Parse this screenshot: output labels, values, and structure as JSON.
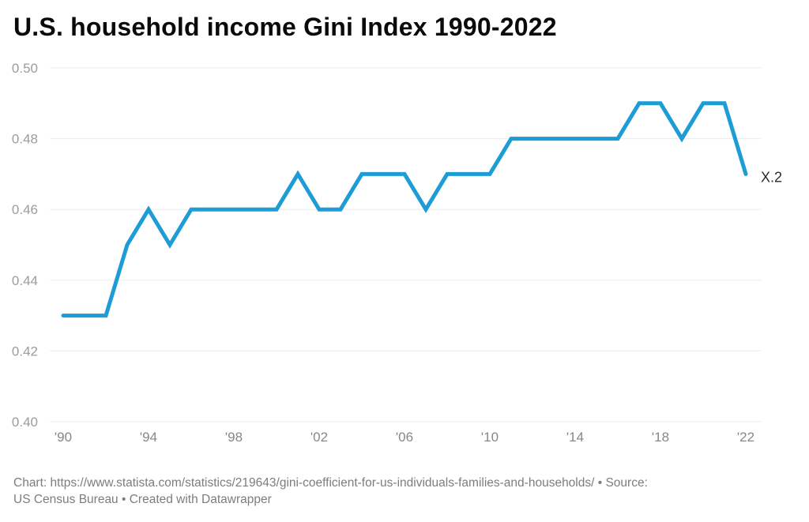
{
  "title": "U.S. household income Gini Index 1990-2022",
  "footer": {
    "line1": "Chart: https://www.statista.com/statistics/219643/gini-coefficient-for-us-individuals-families-and-households/ • Source:",
    "line2": "US Census Bureau • Created with Datawrapper"
  },
  "colors": {
    "line": "#1d9cd6",
    "grid": "#ececec",
    "y_label": "#9c9c9c",
    "x_label": "#878787",
    "end_label": "#2b2b2b",
    "title": "#0a0a0a",
    "footer": "#7d7d7d"
  },
  "chart_data": {
    "type": "line",
    "title": "U.S. household income Gini Index 1990-2022",
    "xlabel": "",
    "ylabel": "",
    "ylim": [
      0.4,
      0.5
    ],
    "grid": "horizontal",
    "legend": false,
    "end_label": "X.2",
    "yticks": [
      0.5,
      0.48,
      0.46,
      0.44,
      0.42,
      0.4
    ],
    "ytick_labels": [
      "0.50",
      "0.48",
      "0.46",
      "0.44",
      "0.42",
      "0.40"
    ],
    "xticks": [
      1990,
      1994,
      1998,
      2002,
      2006,
      2010,
      2014,
      2018,
      2022
    ],
    "xtick_labels": [
      "'90",
      "'94",
      "'98",
      "'02",
      "'06",
      "'10",
      "'14",
      "'18",
      "'22"
    ],
    "x": [
      1990,
      1991,
      1992,
      1993,
      1994,
      1995,
      1996,
      1997,
      1998,
      1999,
      2000,
      2001,
      2002,
      2003,
      2004,
      2005,
      2006,
      2007,
      2008,
      2009,
      2010,
      2011,
      2012,
      2013,
      2014,
      2015,
      2016,
      2017,
      2018,
      2019,
      2020,
      2021,
      2022
    ],
    "series": [
      {
        "name": "Gini Index",
        "values": [
          0.43,
          0.43,
          0.43,
          0.45,
          0.46,
          0.45,
          0.46,
          0.46,
          0.46,
          0.46,
          0.46,
          0.47,
          0.46,
          0.46,
          0.47,
          0.47,
          0.47,
          0.46,
          0.47,
          0.47,
          0.47,
          0.48,
          0.48,
          0.48,
          0.48,
          0.48,
          0.48,
          0.49,
          0.49,
          0.48,
          0.49,
          0.49,
          0.47
        ]
      }
    ]
  }
}
